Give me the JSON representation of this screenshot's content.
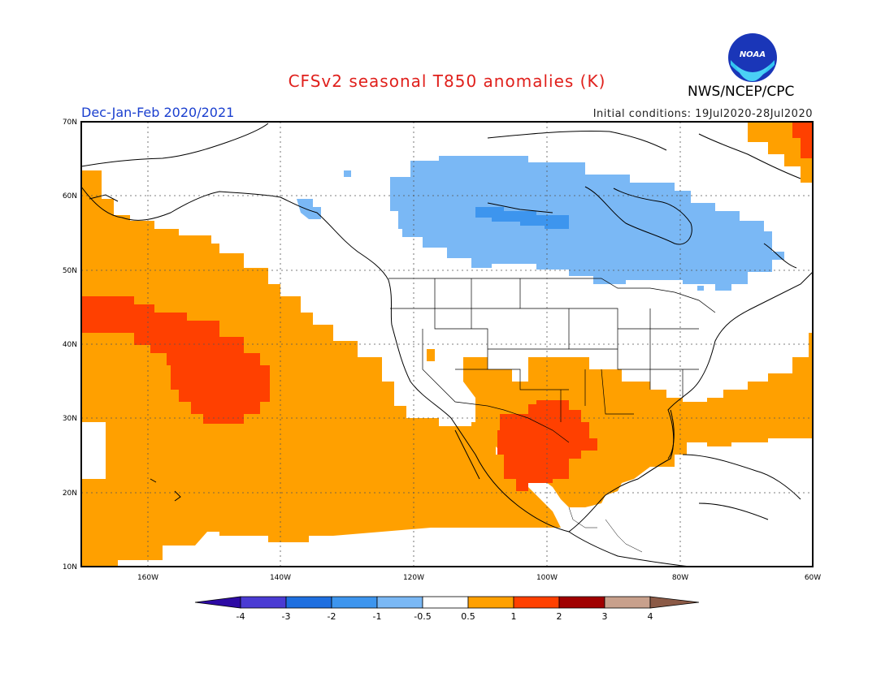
{
  "title": "CFSv2 seasonal T850 anomalies (K)",
  "organization": "NWS/NCEP/CPC",
  "logo_text": "NOAA",
  "season": "Dec-Jan-Feb 2020/2021",
  "initial_conditions": "Initial conditions: 19Jul2020-28Jul2020",
  "map": {
    "lon_range": [
      -170,
      -60
    ],
    "lat_range": [
      10,
      70
    ],
    "lat_labels": [
      "70N",
      "60N",
      "50N",
      "40N",
      "30N",
      "20N",
      "10N"
    ],
    "lon_labels": [
      "160W",
      "140W",
      "120W",
      "100W",
      "80W",
      "60W"
    ]
  },
  "colorbar": {
    "labels": [
      "-4",
      "-3",
      "-2",
      "-1",
      "-0.5",
      "0.5",
      "1",
      "2",
      "3",
      "4"
    ],
    "colors": [
      "#2d0aa4",
      "#4a3bd3",
      "#1e6fe0",
      "#3d95ee",
      "#7ab8f5",
      "#ffffff",
      "#ffa000",
      "#ff4000",
      "#a00000",
      "#c8a08c",
      "#8b5a46"
    ]
  },
  "anomaly_colors": {
    "pos_05_1": "#ffa000",
    "pos_1_2": "#ff4000",
    "neg_05_1": "#7ab8f5",
    "neg_1_2": "#3d95ee"
  }
}
